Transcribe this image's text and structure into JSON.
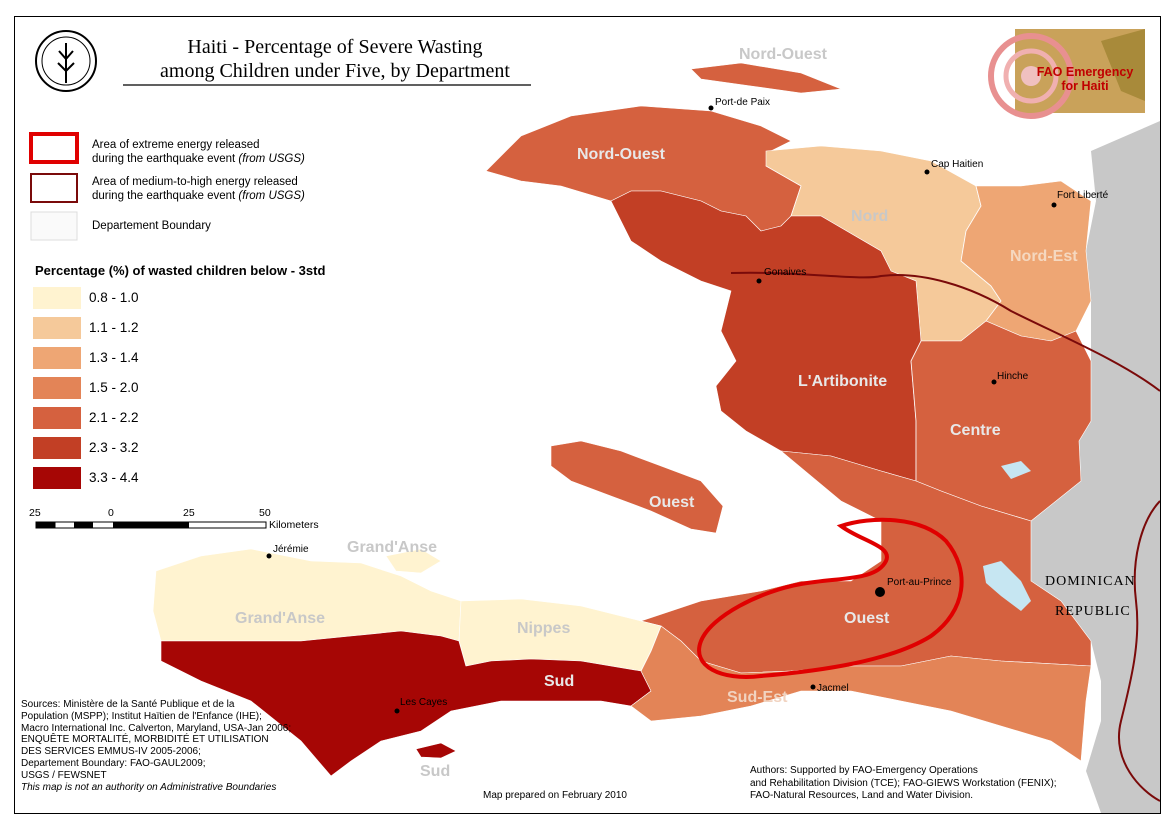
{
  "title": {
    "line1": "Haiti - Percentage of Severe Wasting",
    "line2": "among Children under Five, by Department"
  },
  "logos": {
    "fao": "FAO",
    "emergency_line1": "FAO Emergency",
    "emergency_line2": "for Haiti"
  },
  "boundary_legend": [
    {
      "line1": "Area of extreme energy released",
      "line2a": "during the earthquake event ",
      "line2b": "(from USGS)"
    },
    {
      "line1": "Area of medium-to-high energy released",
      "line2a": "during the earthquake event ",
      "line2b": "(from USGS)"
    },
    {
      "line1": "Departement Boundary",
      "line2a": "",
      "line2b": ""
    }
  ],
  "legend": {
    "title": "Percentage (%) of wasted children below - 3std",
    "classes": [
      {
        "label": "0.8 - 1.0",
        "color": "#fff3d0"
      },
      {
        "label": "1.1 - 1.2",
        "color": "#f5c99a"
      },
      {
        "label": "1.3 - 1.4",
        "color": "#eea674"
      },
      {
        "label": "1.5 - 2.0",
        "color": "#e38457"
      },
      {
        "label": "2.1 - 2.2",
        "color": "#d5613f"
      },
      {
        "label": "2.3 - 3.2",
        "color": "#c23f25"
      },
      {
        "label": "3.3 - 4.4",
        "color": "#a60605"
      }
    ]
  },
  "scalebar": {
    "ticks": [
      "25",
      "0",
      "25",
      "50"
    ],
    "unit": "Kilometers"
  },
  "departments": [
    {
      "name": "Nord-Ouest",
      "color": "#d5613f"
    },
    {
      "name": "Nord",
      "color": "#f5c99a"
    },
    {
      "name": "Nord-Est",
      "color": "#eea674"
    },
    {
      "name": "L'Artibonite",
      "color": "#c23f25"
    },
    {
      "name": "Centre",
      "color": "#d5613f"
    },
    {
      "name": "Ouest",
      "color": "#d5613f"
    },
    {
      "name": "Grand'Anse",
      "color": "#fff3d0"
    },
    {
      "name": "Nippes",
      "color": "#fff3d0"
    },
    {
      "name": "Sud",
      "color": "#a60605"
    },
    {
      "name": "Sud-Est",
      "color": "#e38457"
    }
  ],
  "map_labels": {
    "nord_ouest_island": "Nord-Ouest",
    "nord_ouest": "Nord-Ouest",
    "nord": "Nord",
    "nord_est": "Nord-Est",
    "artibonite": "L'Artibonite",
    "centre": "Centre",
    "ouest_island": "Ouest",
    "ouest": "Ouest",
    "grandanse_island": "Grand'Anse",
    "grandanse": "Grand'Anse",
    "nippes": "Nippes",
    "sud": "Sud",
    "sud_island": "Sud",
    "sud_est": "Sud-Est",
    "dominican_line1": "DOMINICAN",
    "dominican_line2": "REPUBLIC"
  },
  "cities": {
    "port_de_paix": "Port-de Paix",
    "cap_haitien": "Cap Haitien",
    "fort_liberte": "Fort Liberté",
    "gonaives": "Gonaives",
    "hinche": "Hinche",
    "port_au_prince": "Port-au-Prince",
    "jeremie": "Jérémie",
    "jacmel": "Jacmel",
    "les_cayes": "Les Cayes"
  },
  "sources": [
    "Sources: Ministère de la Santé Publique et de la",
    "Population (MSPP); Institut Haïtien de l'Enfance (IHE);",
    "Macro International Inc. Calverton, Maryland, USA-Jan 2006;",
    "ENQUÊTE MORTALITÉ, MORBIDITÉ ET UTILISATION",
    "DES SERVICES EMMUS-IV 2005-2006;",
    "Departement Boundary: FAO-GAUL2009;",
    "USGS / FEWSNET"
  ],
  "disclaimer": "This map is not an authority on Administrative Boundaries",
  "prepared": "Map prepared on February 2010",
  "authors": [
    "Authors: Supported by FAO-Emergency Operations",
    "and Rehabilitation Division (TCE); FAO-GIEWS Workstation (FENIX);",
    "FAO-Natural Resources, Land and Water Division."
  ],
  "colors": {
    "dominican": "#c8c8c8",
    "extreme_ring": "#e00000",
    "medium_ring": "#7a0a0a",
    "water": "#c6e6f2"
  }
}
